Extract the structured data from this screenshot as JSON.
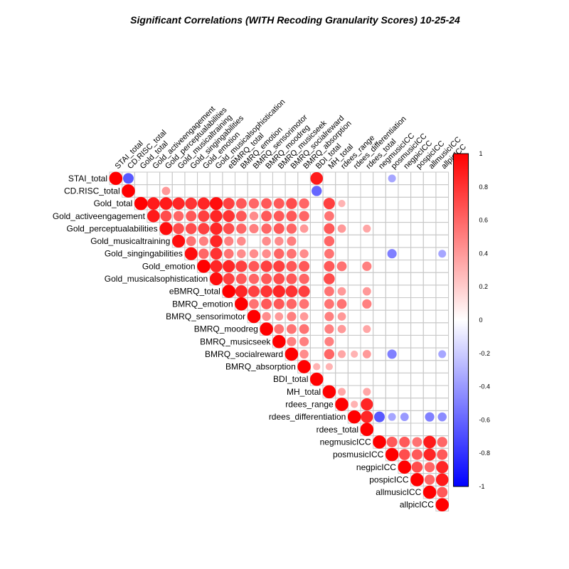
{
  "chart_data": {
    "type": "heatmap",
    "title": "Significant Correlations (WITH Recoding Granularity Scores) 10-25-24",
    "layout": "upper-triangle",
    "glyph": "circle",
    "variables": [
      "STAI_total",
      "CD.RISC_total",
      "Gold_total",
      "Gold_activeengagement",
      "Gold_perceptualabilities",
      "Gold_musicaltraining",
      "Gold_singingabilities",
      "Gold_emotion",
      "Gold_musicalsophistication",
      "eBMRQ_total",
      "BMRQ_emotion",
      "BMRQ_sensorimotor",
      "BMRQ_moodreg",
      "BMRQ_musicseek",
      "BMRQ_socialreward",
      "BMRQ_absorption",
      "BDI_total",
      "MH_total",
      "rdees_range",
      "rdees_differentiation",
      "rdees_total",
      "negmusicICC",
      "posmusicICC",
      "negpicICC",
      "pospicICC",
      "allmusicICC",
      "allpicICC"
    ],
    "correlations": [
      [
        0,
        0,
        1.0
      ],
      [
        0,
        1,
        -0.65
      ],
      [
        0,
        16,
        0.9
      ],
      [
        0,
        22,
        -0.35
      ],
      [
        1,
        1,
        1.0
      ],
      [
        1,
        4,
        0.4
      ],
      [
        1,
        16,
        -0.6
      ],
      [
        2,
        2,
        1.0
      ],
      [
        2,
        3,
        0.9
      ],
      [
        2,
        4,
        0.9
      ],
      [
        2,
        5,
        0.85
      ],
      [
        2,
        6,
        0.8
      ],
      [
        2,
        7,
        0.85
      ],
      [
        2,
        8,
        0.95
      ],
      [
        2,
        9,
        0.75
      ],
      [
        2,
        10,
        0.65
      ],
      [
        2,
        11,
        0.6
      ],
      [
        2,
        12,
        0.65
      ],
      [
        2,
        13,
        0.65
      ],
      [
        2,
        14,
        0.7
      ],
      [
        2,
        15,
        0.6
      ],
      [
        2,
        17,
        0.75
      ],
      [
        2,
        18,
        0.3
      ],
      [
        3,
        3,
        0.9
      ],
      [
        3,
        4,
        0.7
      ],
      [
        3,
        5,
        0.6
      ],
      [
        3,
        6,
        0.65
      ],
      [
        3,
        7,
        0.75
      ],
      [
        3,
        8,
        0.85
      ],
      [
        3,
        9,
        0.8
      ],
      [
        3,
        10,
        0.65
      ],
      [
        3,
        11,
        0.45
      ],
      [
        3,
        12,
        0.65
      ],
      [
        3,
        13,
        0.65
      ],
      [
        3,
        14,
        0.65
      ],
      [
        3,
        15,
        0.6
      ],
      [
        3,
        17,
        0.55
      ],
      [
        4,
        4,
        0.95
      ],
      [
        4,
        5,
        0.7
      ],
      [
        4,
        6,
        0.7
      ],
      [
        4,
        7,
        0.75
      ],
      [
        4,
        8,
        0.85
      ],
      [
        4,
        9,
        0.7
      ],
      [
        4,
        10,
        0.6
      ],
      [
        4,
        11,
        0.5
      ],
      [
        4,
        12,
        0.6
      ],
      [
        4,
        13,
        0.65
      ],
      [
        4,
        14,
        0.6
      ],
      [
        4,
        15,
        0.4
      ],
      [
        4,
        17,
        0.65
      ],
      [
        4,
        18,
        0.4
      ],
      [
        4,
        20,
        0.35
      ],
      [
        5,
        5,
        0.95
      ],
      [
        5,
        6,
        0.55
      ],
      [
        5,
        7,
        0.5
      ],
      [
        5,
        8,
        0.85
      ],
      [
        5,
        9,
        0.5
      ],
      [
        5,
        10,
        0.45
      ],
      [
        5,
        12,
        0.45
      ],
      [
        5,
        13,
        0.45
      ],
      [
        5,
        14,
        0.5
      ],
      [
        5,
        17,
        0.6
      ],
      [
        6,
        6,
        0.95
      ],
      [
        6,
        7,
        0.6
      ],
      [
        6,
        8,
        0.8
      ],
      [
        6,
        9,
        0.55
      ],
      [
        6,
        10,
        0.45
      ],
      [
        6,
        11,
        0.45
      ],
      [
        6,
        12,
        0.45
      ],
      [
        6,
        13,
        0.6
      ],
      [
        6,
        14,
        0.55
      ],
      [
        6,
        15,
        0.45
      ],
      [
        6,
        17,
        0.55
      ],
      [
        6,
        22,
        -0.5
      ],
      [
        6,
        26,
        -0.35
      ],
      [
        7,
        7,
        1.0
      ],
      [
        7,
        8,
        0.85
      ],
      [
        7,
        9,
        0.85
      ],
      [
        7,
        10,
        0.75
      ],
      [
        7,
        11,
        0.65
      ],
      [
        7,
        12,
        0.75
      ],
      [
        7,
        13,
        0.75
      ],
      [
        7,
        14,
        0.65
      ],
      [
        7,
        15,
        0.65
      ],
      [
        7,
        17,
        0.65
      ],
      [
        7,
        18,
        0.55
      ],
      [
        7,
        20,
        0.5
      ],
      [
        8,
        8,
        0.95
      ],
      [
        8,
        9,
        0.75
      ],
      [
        8,
        10,
        0.65
      ],
      [
        8,
        11,
        0.6
      ],
      [
        8,
        12,
        0.65
      ],
      [
        8,
        13,
        0.7
      ],
      [
        8,
        14,
        0.65
      ],
      [
        8,
        15,
        0.6
      ],
      [
        8,
        17,
        0.7
      ],
      [
        9,
        9,
        1.0
      ],
      [
        9,
        10,
        0.85
      ],
      [
        9,
        11,
        0.75
      ],
      [
        9,
        12,
        0.8
      ],
      [
        9,
        13,
        0.85
      ],
      [
        9,
        14,
        0.8
      ],
      [
        9,
        15,
        0.75
      ],
      [
        9,
        17,
        0.55
      ],
      [
        9,
        18,
        0.4
      ],
      [
        9,
        20,
        0.4
      ],
      [
        10,
        10,
        1.0
      ],
      [
        10,
        11,
        0.55
      ],
      [
        10,
        12,
        0.65
      ],
      [
        10,
        13,
        0.65
      ],
      [
        10,
        14,
        0.6
      ],
      [
        10,
        15,
        0.55
      ],
      [
        10,
        17,
        0.55
      ],
      [
        10,
        18,
        0.55
      ],
      [
        10,
        20,
        0.5
      ],
      [
        11,
        11,
        1.0
      ],
      [
        11,
        12,
        0.45
      ],
      [
        11,
        13,
        0.4
      ],
      [
        11,
        14,
        0.5
      ],
      [
        11,
        15,
        0.4
      ],
      [
        11,
        17,
        0.5
      ],
      [
        11,
        18,
        0.4
      ],
      [
        12,
        12,
        1.0
      ],
      [
        12,
        13,
        0.55
      ],
      [
        12,
        14,
        0.55
      ],
      [
        12,
        15,
        0.55
      ],
      [
        12,
        17,
        0.5
      ],
      [
        12,
        18,
        0.4
      ],
      [
        12,
        20,
        0.35
      ],
      [
        13,
        13,
        1.0
      ],
      [
        13,
        14,
        0.5
      ],
      [
        13,
        15,
        0.5
      ],
      [
        13,
        17,
        0.5
      ],
      [
        14,
        14,
        1.0
      ],
      [
        14,
        15,
        0.45
      ],
      [
        14,
        17,
        0.6
      ],
      [
        14,
        18,
        0.35
      ],
      [
        14,
        19,
        0.3
      ],
      [
        14,
        20,
        0.4
      ],
      [
        14,
        22,
        -0.5
      ],
      [
        14,
        26,
        -0.35
      ],
      [
        15,
        15,
        1.0
      ],
      [
        15,
        16,
        0.3
      ],
      [
        15,
        17,
        0.3
      ],
      [
        16,
        16,
        1.0
      ],
      [
        17,
        17,
        1.0
      ],
      [
        17,
        18,
        0.35
      ],
      [
        17,
        20,
        0.35
      ],
      [
        18,
        18,
        1.0
      ],
      [
        18,
        19,
        0.3
      ],
      [
        18,
        20,
        0.85
      ],
      [
        19,
        19,
        1.0
      ],
      [
        19,
        20,
        0.85
      ],
      [
        19,
        21,
        -0.65
      ],
      [
        19,
        22,
        -0.35
      ],
      [
        19,
        23,
        -0.4
      ],
      [
        19,
        25,
        -0.5
      ],
      [
        19,
        26,
        -0.45
      ],
      [
        20,
        20,
        1.0
      ],
      [
        21,
        21,
        1.0
      ],
      [
        21,
        22,
        0.65
      ],
      [
        21,
        23,
        0.65
      ],
      [
        21,
        24,
        0.55
      ],
      [
        21,
        25,
        0.9
      ],
      [
        21,
        26,
        0.6
      ],
      [
        22,
        22,
        1.0
      ],
      [
        22,
        23,
        0.7
      ],
      [
        22,
        24,
        0.65
      ],
      [
        22,
        25,
        0.85
      ],
      [
        22,
        26,
        0.65
      ],
      [
        23,
        23,
        1.0
      ],
      [
        23,
        24,
        0.7
      ],
      [
        23,
        25,
        0.6
      ],
      [
        23,
        26,
        0.85
      ],
      [
        24,
        24,
        1.0
      ],
      [
        24,
        25,
        0.6
      ],
      [
        24,
        26,
        0.9
      ],
      [
        25,
        25,
        1.0
      ],
      [
        25,
        26,
        0.65
      ],
      [
        26,
        26,
        1.0
      ]
    ],
    "colorbar": {
      "range": [
        -1,
        1
      ],
      "ticks": [
        "1",
        "0.8",
        "0.6",
        "0.4",
        "0.2",
        "0",
        "-0.2",
        "-0.4",
        "-0.6",
        "-0.8",
        "-1"
      ],
      "low_color": "#0000FF",
      "mid_color": "#FFFFFF",
      "high_color": "#FF0000"
    },
    "grid": true
  }
}
